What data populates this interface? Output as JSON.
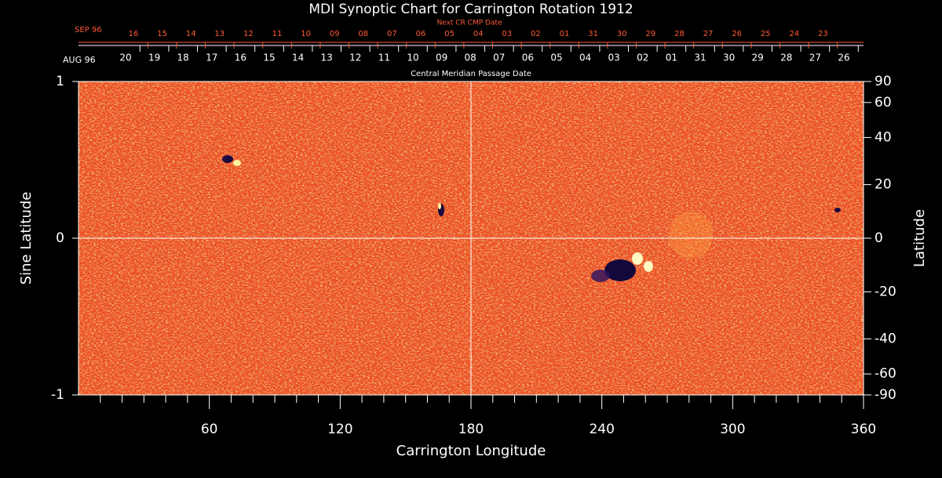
{
  "chart_data": {
    "type": "synoptic-map",
    "title": "MDI Synoptic Chart for Carrington Rotation 1912",
    "x_label": "Carrington Longitude",
    "y_label": "Sine Latitude",
    "y2_label": "Latitude",
    "xlim": [
      0,
      360
    ],
    "xticks": [
      60,
      120,
      180,
      240,
      300,
      360
    ],
    "ylim": [
      -1,
      1
    ],
    "yticks": [
      -1,
      0,
      1
    ],
    "y2lim": [
      -90,
      90
    ],
    "y2scale": "sine",
    "y2ticks": [
      90,
      60,
      40,
      20,
      0,
      -20,
      -40,
      -60,
      -90
    ],
    "grid": true,
    "cmp_axis": {
      "title": "Central Meridian Passage Date",
      "month": "AUG 96",
      "dates": [
        "20",
        "19",
        "18",
        "17",
        "16",
        "15",
        "14",
        "13",
        "12",
        "11",
        "10",
        "09",
        "08",
        "07",
        "06",
        "05",
        "04",
        "03",
        "02",
        "01",
        "31",
        "30",
        "29",
        "28",
        "27",
        "26"
      ]
    },
    "next_cmp_axis": {
      "title": "Next CR CMP Date",
      "month": "SEP 96",
      "color": "#ff5a36",
      "dates": [
        "16",
        "15",
        "14",
        "13",
        "12",
        "11",
        "10",
        "09",
        "08",
        "07",
        "06",
        "05",
        "04",
        "03",
        "02",
        "01",
        "31",
        "30",
        "29",
        "28",
        "27",
        "26",
        "25",
        "24",
        "23"
      ]
    }
  }
}
